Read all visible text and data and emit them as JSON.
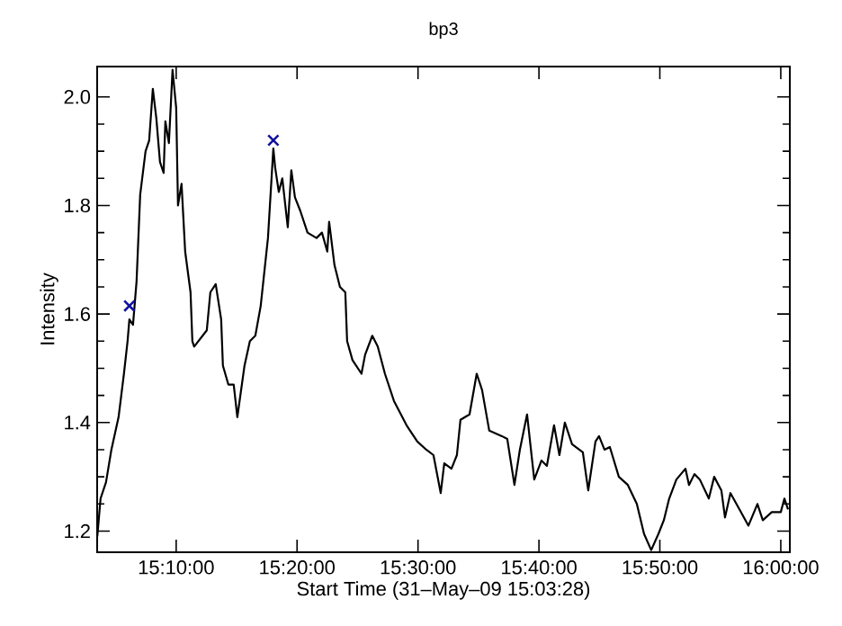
{
  "chart_data": {
    "type": "line",
    "title": "bp3",
    "xlabel": "Start Time (31–May–09 15:03:28)",
    "ylabel": "Intensity",
    "xlim": [
      15.0578,
      16.0125
    ],
    "ylim": [
      1.161,
      2.056
    ],
    "xticks": [
      {
        "value": 15.1667,
        "label": "15:10:00"
      },
      {
        "value": 15.3333,
        "label": "15:20:00"
      },
      {
        "value": 15.5,
        "label": "15:30:00"
      },
      {
        "value": 15.6667,
        "label": "15:40:00"
      },
      {
        "value": 15.8333,
        "label": "15:50:00"
      },
      {
        "value": 16.0,
        "label": "16:00:00"
      }
    ],
    "yticks": [
      1.2,
      1.4,
      1.6,
      1.8,
      {
        "value": 2.0,
        "label": "2.0"
      }
    ],
    "series": [
      {
        "color": "#000000",
        "marker": "none",
        "line_style": "solid",
        "x": [
          15.058,
          15.0625,
          15.07,
          15.0774,
          15.0873,
          15.0947,
          15.0997,
          15.1022,
          15.1072,
          15.1121,
          15.1171,
          15.1245,
          15.1295,
          15.1345,
          15.1394,
          15.1444,
          15.1494,
          15.1518,
          15.1567,
          15.1617,
          15.1667,
          15.1692,
          15.1741,
          15.1791,
          15.1865,
          15.189,
          15.1915,
          15.2089,
          15.2138,
          15.2212,
          15.2287,
          15.2311,
          15.2386,
          15.246,
          15.251,
          15.2609,
          15.2683,
          15.2758,
          15.2832,
          15.2932,
          15.3006,
          15.3031,
          15.3081,
          15.313,
          15.3205,
          15.3254,
          15.3304,
          15.3378,
          15.3477,
          15.3601,
          15.3676,
          15.375,
          15.3775,
          15.3849,
          15.3924,
          15.3998,
          15.4023,
          15.4097,
          15.4221,
          15.4271,
          15.437,
          15.4445,
          15.4544,
          15.4668,
          15.4842,
          15.499,
          15.5114,
          15.5213,
          15.5313,
          15.5362,
          15.5461,
          15.5536,
          15.5585,
          15.571,
          15.5809,
          15.5883,
          15.5982,
          15.6156,
          15.623,
          15.6329,
          15.6404,
          15.6503,
          15.6602,
          15.6701,
          15.6776,
          15.6875,
          15.6949,
          15.7024,
          15.7123,
          15.7272,
          15.7346,
          15.7446,
          15.7495,
          15.757,
          15.7644,
          15.7768,
          15.7892,
          15.8016,
          15.8115,
          15.8214,
          15.8314,
          15.8388,
          15.8462,
          15.8561,
          15.8686,
          15.8735,
          15.881,
          15.8884,
          15.9008,
          15.9082,
          15.9181,
          15.9231,
          15.9306,
          15.943,
          15.9554,
          15.9678,
          15.9752,
          15.9876,
          16.0,
          16.005,
          16.01
        ],
        "values": [
          1.19,
          1.26,
          1.29,
          1.35,
          1.41,
          1.49,
          1.55,
          1.59,
          1.58,
          1.66,
          1.82,
          1.9,
          1.92,
          2.015,
          1.96,
          1.88,
          1.86,
          1.955,
          1.915,
          2.05,
          1.98,
          1.8,
          1.84,
          1.715,
          1.64,
          1.55,
          1.54,
          1.57,
          1.64,
          1.655,
          1.59,
          1.505,
          1.47,
          1.47,
          1.41,
          1.505,
          1.55,
          1.56,
          1.615,
          1.74,
          1.905,
          1.87,
          1.825,
          1.85,
          1.76,
          1.865,
          1.815,
          1.79,
          1.75,
          1.74,
          1.75,
          1.715,
          1.77,
          1.69,
          1.65,
          1.64,
          1.55,
          1.515,
          1.49,
          1.525,
          1.56,
          1.54,
          1.49,
          1.44,
          1.395,
          1.365,
          1.35,
          1.34,
          1.27,
          1.325,
          1.315,
          1.34,
          1.405,
          1.415,
          1.49,
          1.46,
          1.385,
          1.375,
          1.37,
          1.285,
          1.35,
          1.415,
          1.295,
          1.33,
          1.32,
          1.395,
          1.34,
          1.4,
          1.36,
          1.345,
          1.275,
          1.365,
          1.375,
          1.35,
          1.355,
          1.3,
          1.285,
          1.25,
          1.195,
          1.165,
          1.195,
          1.22,
          1.26,
          1.295,
          1.315,
          1.285,
          1.305,
          1.295,
          1.26,
          1.3,
          1.275,
          1.225,
          1.27,
          1.24,
          1.21,
          1.25,
          1.22,
          1.235,
          1.235,
          1.26,
          1.24
        ]
      },
      {
        "type": "scatter",
        "color": "#1010a0",
        "marker": "cross",
        "x": [
          15.1022,
          15.3006
        ],
        "values": [
          1.615,
          1.92
        ]
      }
    ]
  }
}
